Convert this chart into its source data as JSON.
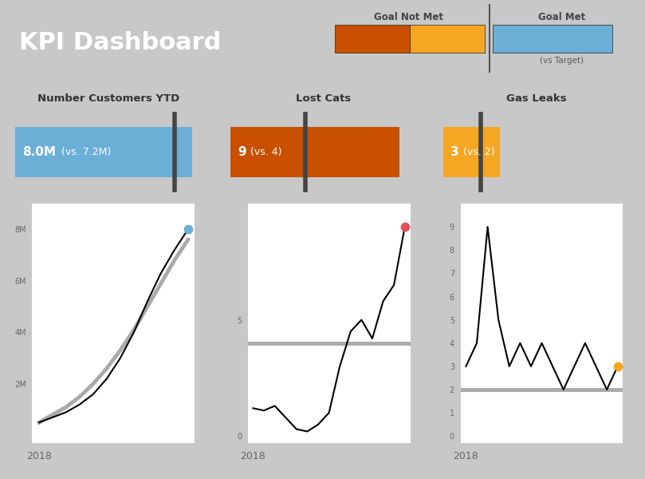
{
  "title": "KPI Dashboard",
  "title_bg": "#808080",
  "title_color": "white",
  "legend_border": "#E87722",
  "legend_bg": "white",
  "legend_title_not_met": "Goal Not Met",
  "legend_title_met": "Goal Met",
  "legend_subtitle": "(vs Target)",
  "legend_color_dark_orange": "#C85000",
  "legend_color_orange": "#F5A623",
  "legend_color_blue": "#6BAED6",
  "panels": [
    {
      "title": "Number Customers YTD",
      "bar_color": "#6BAED6",
      "bar_value": 8.0,
      "bar_target": 7.2,
      "bar_max": 8.5,
      "label_main": "8.0M",
      "label_vs": " (vs. 7.2M)",
      "line_data": [
        0.5,
        0.7,
        0.9,
        1.2,
        1.6,
        2.2,
        3.0,
        4.0,
        5.2,
        6.3,
        7.2,
        8.0
      ],
      "target_line": [
        0.5,
        0.8,
        1.1,
        1.5,
        2.0,
        2.6,
        3.3,
        4.1,
        5.0,
        5.9,
        6.8,
        7.6
      ],
      "line_color": "black",
      "target_line_color": "#aaaaaa",
      "dot_color": "#6BAED6",
      "yticks": [
        "",
        "2M",
        "4M",
        "6M",
        "8M"
      ],
      "ytick_vals": [
        0,
        2,
        4,
        6,
        8
      ],
      "ymax": 9,
      "xlabel": "2018",
      "ref_line": null
    },
    {
      "title": "Lost Cats",
      "bar_color": "#C85000",
      "bar_value": 9,
      "bar_target": 4,
      "bar_max": 10,
      "label_main": "9",
      "label_vs": " (vs. 4)",
      "line_data": [
        1.2,
        1.1,
        1.3,
        0.8,
        0.3,
        0.2,
        0.5,
        1.0,
        3.0,
        4.5,
        5.0,
        4.2,
        5.8,
        6.5,
        9.0
      ],
      "target_line": null,
      "line_color": "black",
      "target_line_color": "#aaaaaa",
      "dot_color": "#E05555",
      "yticks": [
        "0",
        "",
        "",
        "",
        "",
        "5",
        "",
        "",
        "",
        ""
      ],
      "ytick_vals": [
        0,
        1,
        2,
        3,
        4,
        5,
        6,
        7,
        8,
        9
      ],
      "ymax": 10,
      "xlabel": "2018",
      "ref_line": 4
    },
    {
      "title": "Gas Leaks",
      "bar_color": "#F5A623",
      "bar_value": 3,
      "bar_target": 2,
      "bar_max": 10,
      "label_main": "3",
      "label_vs": " (vs. 2)",
      "line_data": [
        3,
        4,
        9,
        5,
        3,
        4,
        3,
        4,
        3,
        2,
        3,
        4,
        3,
        2,
        3
      ],
      "target_line": null,
      "line_color": "black",
      "target_line_color": "#aaaaaa",
      "dot_color": "#F5A623",
      "yticks": [
        "0",
        "1",
        "2",
        "3",
        "4",
        "5",
        "6",
        "7",
        "8",
        "9"
      ],
      "ytick_vals": [
        0,
        1,
        2,
        3,
        4,
        5,
        6,
        7,
        8,
        9
      ],
      "ymax": 10,
      "xlabel": "2018",
      "ref_line": 2
    }
  ]
}
